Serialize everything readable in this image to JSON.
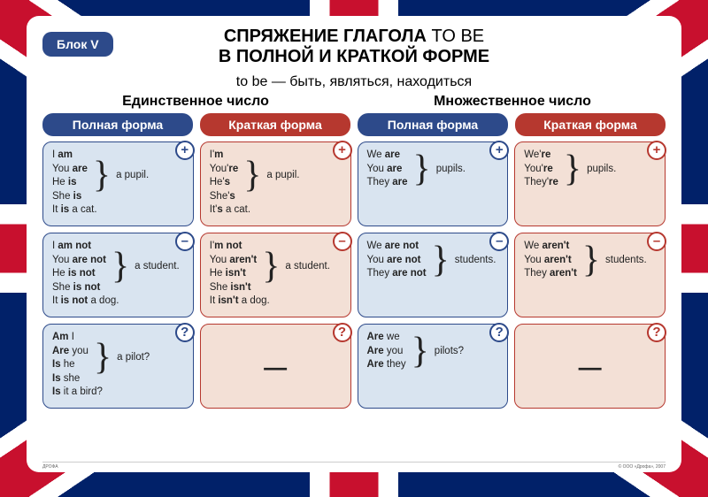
{
  "tab": "Блок V",
  "title_line1": "СПРЯЖЕНИЕ ГЛАГОЛА",
  "title_tobe": "TO BE",
  "title_line2": "В ПОЛНОЙ И КРАТКОЙ ФОРМЕ",
  "subtitle": "to be — быть, являться, находиться",
  "section_singular": "Единственное число",
  "section_plural": "Множественное число",
  "header_full": "Полная форма",
  "header_short": "Краткая форма",
  "badge_plus": "+",
  "badge_minus": "–",
  "badge_q": "?",
  "dash": "—",
  "footer_left": "ДРОФА",
  "footer_right": "© ООО «Дрофа», 2007",
  "cells": {
    "sg_full_pos": {
      "lines": [
        "I <b>am</b>",
        "You <b>are</b>",
        "He <b>is</b>",
        "She <b>is</b>"
      ],
      "obj": "a pupil.",
      "extra": "It <b>is</b> a cat."
    },
    "sg_short_pos": {
      "lines": [
        "I'<b>m</b>",
        "You'<b>re</b>",
        "He'<b>s</b>",
        "She'<b>s</b>"
      ],
      "obj": "a pupil.",
      "extra": "It'<b>s</b> a cat."
    },
    "pl_full_pos": {
      "lines": [
        "We <b>are</b>",
        "You <b>are</b>",
        "They <b>are</b>"
      ],
      "obj": "pupils."
    },
    "pl_short_pos": {
      "lines": [
        "We'<b>re</b>",
        "You'<b>re</b>",
        "They'<b>re</b>"
      ],
      "obj": "pupils."
    },
    "sg_full_neg": {
      "lines": [
        "I <b>am not</b>",
        "You <b>are not</b>",
        "He <b>is not</b>",
        "She <b>is not</b>"
      ],
      "obj": "a student.",
      "extra": "It <b>is not</b> a dog."
    },
    "sg_short_neg": {
      "lines": [
        "I'<b>m not</b>",
        "You <b>aren't</b>",
        "He <b>isn't</b>",
        "She <b>isn't</b>"
      ],
      "obj": "a student.",
      "extra": "It <b>isn't</b> a dog."
    },
    "pl_full_neg": {
      "lines": [
        "We <b>are not</b>",
        "You <b>are not</b>",
        "They <b>are not</b>"
      ],
      "obj": "students."
    },
    "pl_short_neg": {
      "lines": [
        "We <b>aren't</b>",
        "You <b>aren't</b>",
        "They <b>aren't</b>"
      ],
      "obj": "students."
    },
    "sg_full_q": {
      "lines": [
        "<b>Am</b> I",
        "<b>Are</b> you",
        "<b>Is</b> he",
        "<b>Is</b> she"
      ],
      "obj": "a pilot?",
      "extra": "<b>Is</b> it a bird?"
    },
    "pl_full_q": {
      "lines": [
        "<b>Are</b> we",
        "<b>Are</b> you",
        "<b>Are</b> they"
      ],
      "obj": "pilots?"
    }
  }
}
